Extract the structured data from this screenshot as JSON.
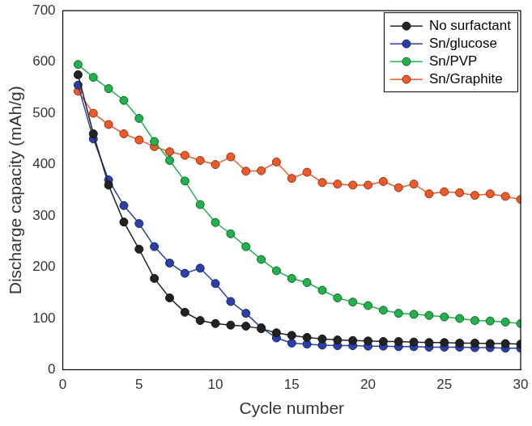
{
  "chart_data": {
    "type": "line",
    "x_label": "Cycle number",
    "y_label": "Discharge capacity (mAh/g)",
    "x": [
      1,
      2,
      3,
      4,
      5,
      6,
      7,
      8,
      9,
      10,
      11,
      12,
      13,
      14,
      15,
      16,
      17,
      18,
      19,
      20,
      21,
      22,
      23,
      24,
      25,
      26,
      27,
      28,
      29,
      30
    ],
    "series": [
      {
        "name": "No surfactant",
        "color": "#222222",
        "marker": "circle",
        "values": [
          575,
          460,
          360,
          288,
          235,
          178,
          140,
          112,
          96,
          90,
          87,
          85,
          80,
          72,
          67,
          63,
          60,
          58,
          57,
          56,
          55,
          55,
          54,
          53,
          53,
          52,
          52,
          51,
          51,
          50
        ]
      },
      {
        "name": "Sn/glucose",
        "color": "#2b3fa8",
        "marker": "circle",
        "values": [
          555,
          450,
          370,
          320,
          285,
          240,
          208,
          188,
          198,
          168,
          133,
          110,
          82,
          62,
          52,
          50,
          48,
          47,
          47,
          46,
          46,
          45,
          45,
          44,
          44,
          44,
          43,
          43,
          42,
          42
        ]
      },
      {
        "name": "Sn/PVP",
        "color": "#22b14c",
        "marker": "circle",
        "values": [
          595,
          570,
          548,
          525,
          490,
          445,
          408,
          368,
          322,
          287,
          265,
          240,
          215,
          193,
          178,
          170,
          155,
          140,
          132,
          125,
          116,
          110,
          108,
          106,
          103,
          100,
          96,
          95,
          93,
          90
        ]
      },
      {
        "name": "Sn/Graphite",
        "color": "#f05a28",
        "marker": "circle",
        "values": [
          543,
          500,
          478,
          460,
          448,
          435,
          425,
          418,
          408,
          400,
          415,
          387,
          388,
          405,
          373,
          385,
          365,
          362,
          360,
          360,
          367,
          355,
          362,
          343,
          347,
          345,
          340,
          343,
          338,
          332
        ]
      }
    ],
    "xlim": [
      0,
      30
    ],
    "xticks": [
      0,
      5,
      10,
      15,
      20,
      25,
      30
    ],
    "ylim": [
      0,
      700
    ],
    "yticks": [
      0,
      100,
      200,
      300,
      400,
      500,
      600,
      700
    ],
    "grid": false,
    "legend": "upper right"
  }
}
